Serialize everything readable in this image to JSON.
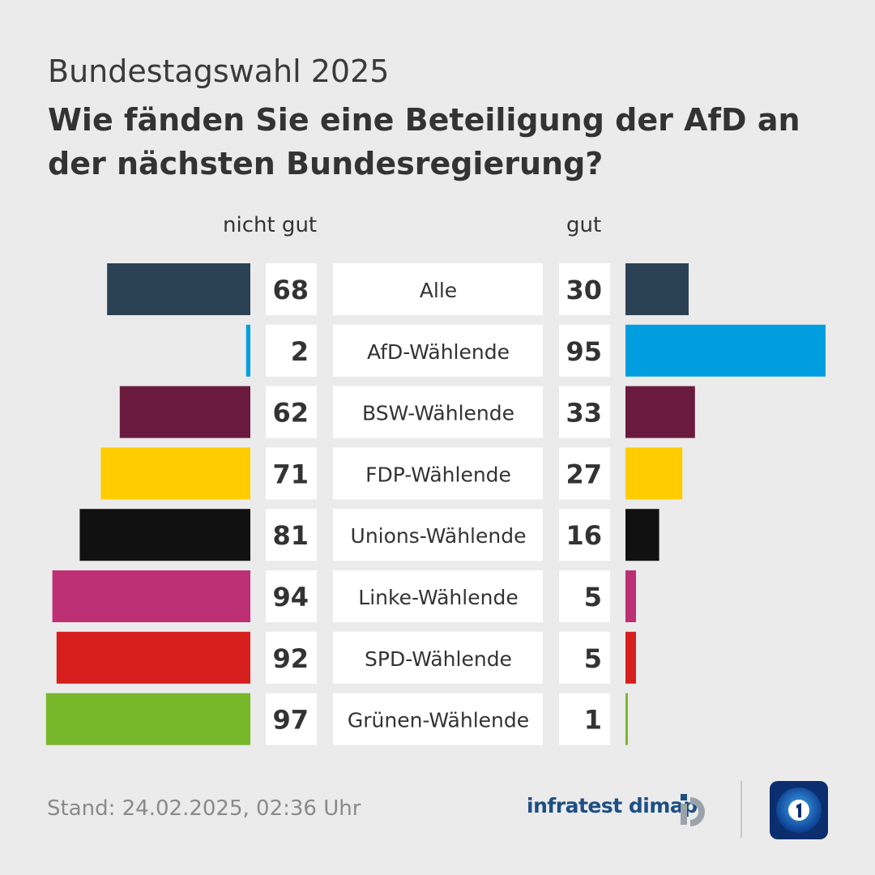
{
  "header": {
    "supertitle": "Bundestagswahl 2025",
    "title": "Wie fänden Sie eine Beteiligung der AfD an der nächsten Bundesregierung?"
  },
  "columns": {
    "left": "nicht gut",
    "right": "gut"
  },
  "chart_data": {
    "type": "bar",
    "categories": [
      "Alle",
      "AfD-Wählende",
      "BSW-Wählende",
      "FDP-Wählende",
      "Unions-Wählende",
      "Linke-Wählende",
      "SPD-Wählende",
      "Grünen-Wählende"
    ],
    "series": [
      {
        "name": "nicht gut",
        "values": [
          68,
          2,
          62,
          71,
          81,
          94,
          92,
          97
        ]
      },
      {
        "name": "gut",
        "values": [
          30,
          95,
          33,
          27,
          16,
          5,
          5,
          1
        ]
      }
    ],
    "colors": [
      "#2b4255",
      "#009ee0",
      "#6b1a3f",
      "#ffcc00",
      "#111111",
      "#bd3075",
      "#d71f1d",
      "#76b82a"
    ],
    "xlim": [
      0,
      100
    ]
  },
  "footer": {
    "stand": "Stand:  24.02.2025, 02:36 Uhr",
    "source": "infratest dimap",
    "source_icon": "infratest-dimap-logo-icon",
    "broadcaster_icon": "tagesschau-logo-icon"
  }
}
